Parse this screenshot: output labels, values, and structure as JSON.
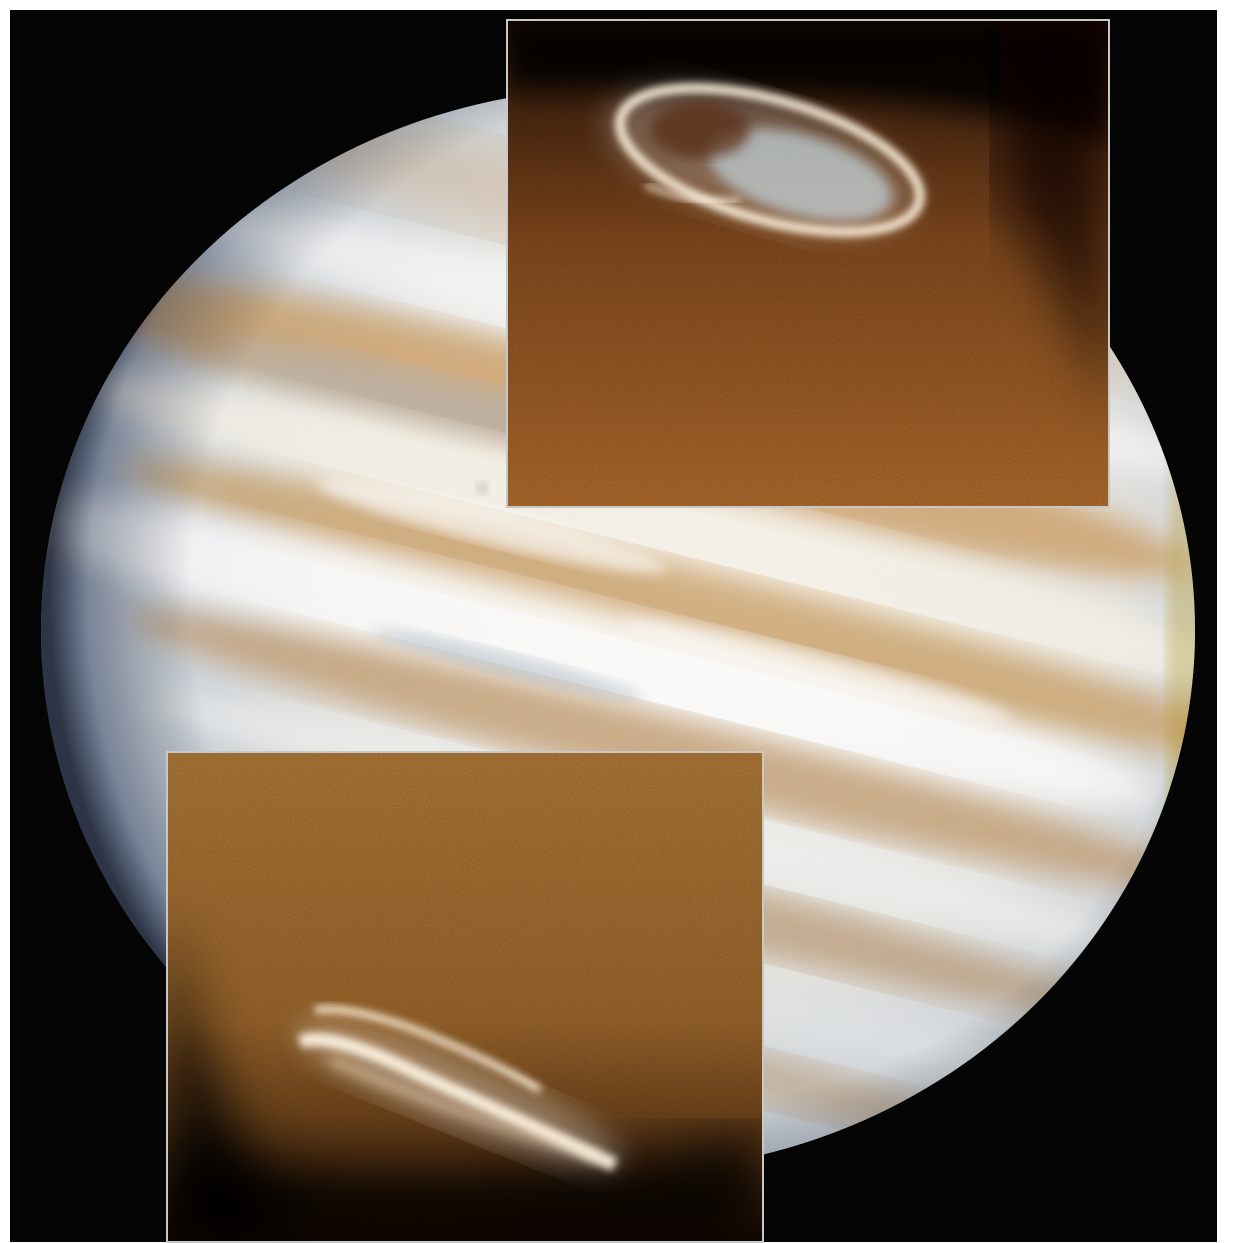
{
  "image": {
    "subject": "jupiter-with-polar-aurora-insets",
    "colors": {
      "frame": "#ffffff",
      "space": "#050505",
      "planet_light": "#eef2f4",
      "planet_blue_edge": "#6f83a6",
      "belt_tan": "#c79b62",
      "belt_brown": "#9b6a3a",
      "limb_gold": "#c9a431",
      "inset_border": "#c8c8c8",
      "north_inset_top": "#5b3216",
      "north_inset_mid": "#93521f",
      "north_inset_low": "#b8702d",
      "south_inset_top": "#b67a35",
      "south_inset_mid": "#a86e30",
      "south_inset_low": "#6b4018",
      "aurora_glow": "#fff6e6",
      "aurora_blue": "#c4e1f1"
    },
    "insets": [
      {
        "name": "north-polar-aurora-inset",
        "feature": "aurora-oval"
      },
      {
        "name": "south-polar-aurora-inset",
        "feature": "aurora-arcs"
      }
    ]
  }
}
